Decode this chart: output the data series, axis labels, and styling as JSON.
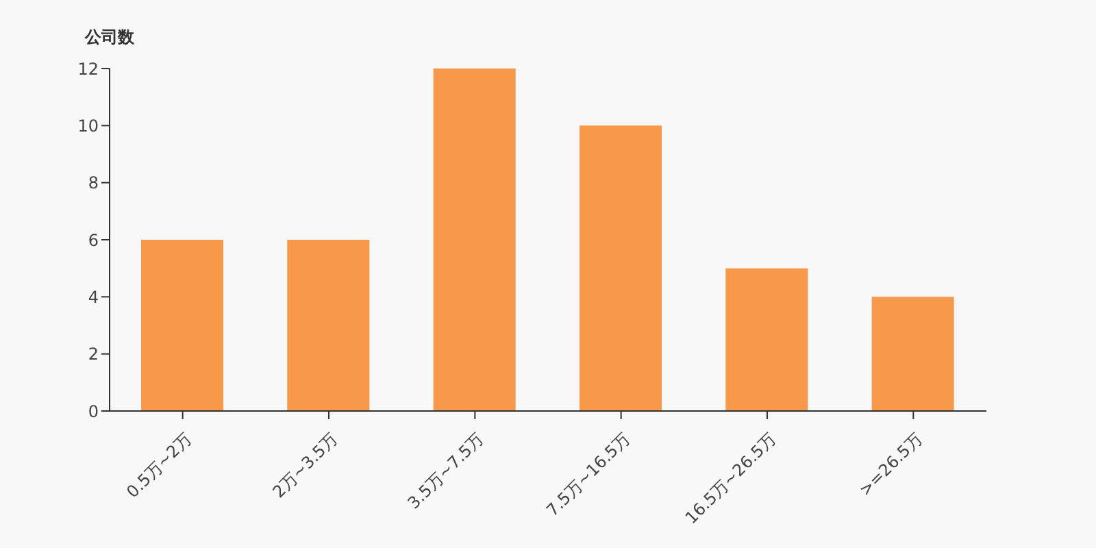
{
  "chart_data": {
    "type": "bar",
    "ylabel": "公司数",
    "categories": [
      "0.5万~2万",
      "2万~3.5万",
      "3.5万~7.5万",
      "7.5万~16.5万",
      "16.5万~26.5万",
      ">=26.5万"
    ],
    "values": [
      6,
      6,
      12,
      10,
      5,
      4
    ],
    "color": "#f7984a",
    "ylim": [
      0,
      12
    ],
    "yticks": [
      0,
      2,
      4,
      6,
      8,
      10,
      12
    ]
  }
}
